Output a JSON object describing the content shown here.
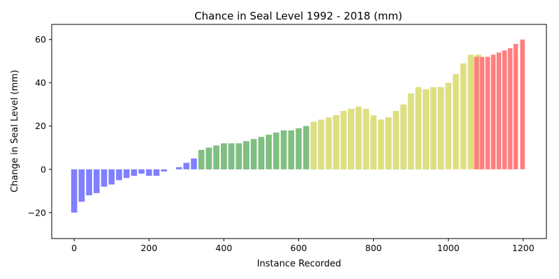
{
  "chart_data": {
    "type": "bar",
    "title": "Chance in Seal Level 1992 - 2018 (mm)",
    "xlabel": "Instance Recorded",
    "ylabel": "Change in Seal Level (mm)",
    "xlim": [
      -60,
      1262
    ],
    "ylim": [
      -32,
      67
    ],
    "xticks": [
      0,
      200,
      400,
      600,
      800,
      1000,
      1200
    ],
    "yticks": [
      -20,
      0,
      20,
      40,
      60
    ],
    "grid": false,
    "legend": "none",
    "series": [
      {
        "color": "#7f7fff",
        "x": [
          0,
          20,
          40,
          60,
          80,
          100,
          120,
          140,
          160,
          180,
          200,
          220,
          240,
          260,
          280,
          300,
          320,
          340,
          360,
          380,
          400,
          420,
          440,
          460,
          480,
          500
        ],
        "values": [
          -20,
          -15,
          -12,
          -11,
          -8,
          -7,
          -5,
          -4,
          -3,
          -2,
          -3,
          -3,
          -1,
          0,
          1,
          3,
          5,
          8,
          10,
          11,
          12,
          12,
          12,
          13,
          13,
          14
        ]
      },
      {
        "color": "#7fbf7f",
        "x": [
          340,
          360,
          380,
          400,
          420,
          440,
          460,
          480,
          500,
          520,
          540,
          560,
          580,
          600,
          620,
          640,
          660,
          680,
          700,
          720,
          740,
          760,
          780,
          800,
          820,
          840,
          860,
          880,
          900,
          920,
          940,
          960,
          980
        ],
        "values": [
          9,
          10,
          11,
          12,
          12,
          12,
          13,
          14,
          15,
          16,
          17,
          18,
          18,
          19,
          20,
          21,
          22,
          23,
          25,
          27,
          28,
          28,
          26,
          23,
          23,
          24,
          26,
          29,
          35,
          37,
          37,
          37,
          38
        ]
      },
      {
        "color": "#dfdf7f",
        "x": [
          640,
          660,
          680,
          700,
          720,
          740,
          760,
          780,
          800,
          820,
          840,
          860,
          880,
          900,
          920,
          940,
          960,
          980,
          1000,
          1020,
          1040,
          1060,
          1080
        ],
        "values": [
          22,
          23,
          24,
          25,
          27,
          28,
          29,
          28,
          25,
          23,
          24,
          27,
          30,
          35,
          38,
          37,
          38,
          38,
          40,
          44,
          49,
          53,
          53
        ]
      },
      {
        "color": "#ff7f7f",
        "x": [
          1075,
          1090,
          1105,
          1120,
          1135,
          1150,
          1165,
          1180,
          1198
        ],
        "values": [
          52,
          52,
          52,
          53,
          54,
          55,
          56,
          58,
          60
        ]
      }
    ]
  }
}
